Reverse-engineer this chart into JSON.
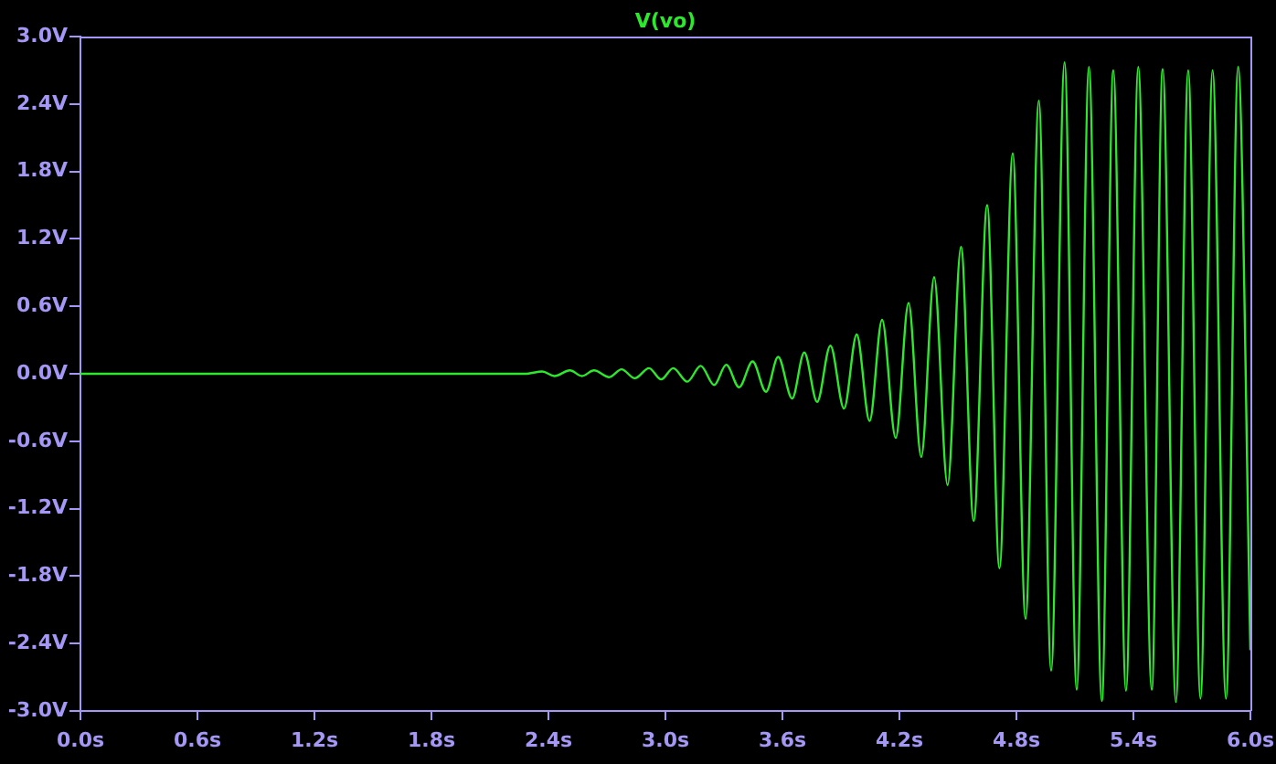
{
  "chart_data": {
    "type": "line",
    "legend": "top",
    "x": [
      0,
      2.28,
      2.369,
      2.431,
      2.51,
      2.572,
      2.634,
      2.712,
      2.775,
      2.843,
      2.916,
      2.978,
      3.04,
      3.112,
      3.181,
      3.25,
      3.312,
      3.378,
      3.447,
      3.516,
      3.578,
      3.65,
      3.712,
      3.778,
      3.846,
      3.916,
      3.981,
      4.047,
      4.111,
      4.181,
      4.247,
      4.312,
      4.378,
      4.447,
      4.516,
      4.581,
      4.65,
      4.713,
      4.781,
      4.847,
      4.915,
      4.978,
      5.047,
      5.109,
      5.172,
      5.238,
      5.297,
      5.362,
      5.425,
      5.494,
      5.55,
      5.618,
      5.681,
      5.744,
      5.806,
      5.875,
      5.937,
      6.0
    ],
    "series": [
      {
        "name": "V(vo)",
        "color": "#2ee82e",
        "values": [
          0,
          0,
          0.02,
          -0.02,
          0.03,
          -0.02,
          0.03,
          -0.03,
          0.04,
          -0.04,
          0.05,
          -0.05,
          0.05,
          -0.07,
          0.07,
          -0.1,
          0.08,
          -0.12,
          0.11,
          -0.16,
          0.15,
          -0.22,
          0.19,
          -0.25,
          0.25,
          -0.31,
          0.35,
          -0.42,
          0.48,
          -0.57,
          0.63,
          -0.74,
          0.86,
          -0.99,
          1.13,
          -1.31,
          1.5,
          -1.73,
          1.96,
          -2.18,
          2.43,
          -2.64,
          2.77,
          -2.81,
          2.73,
          -2.91,
          2.7,
          -2.82,
          2.73,
          -2.81,
          2.71,
          -2.92,
          2.7,
          -2.89,
          2.7,
          -2.89,
          2.73,
          -2.46
        ]
      }
    ],
    "xlim": [
      0,
      6
    ],
    "xticks": [
      {
        "value": 0,
        "label": "0.0s"
      },
      {
        "value": 0.6,
        "label": "0.6s"
      },
      {
        "value": 1.2,
        "label": "1.2s"
      },
      {
        "value": 1.8,
        "label": "1.8s"
      },
      {
        "value": 2.4,
        "label": "2.4s"
      },
      {
        "value": 3,
        "label": "3.0s"
      },
      {
        "value": 3.6,
        "label": "3.6s"
      },
      {
        "value": 4.2,
        "label": "4.2s"
      },
      {
        "value": 4.8,
        "label": "4.8s"
      },
      {
        "value": 5.4,
        "label": "5.4s"
      },
      {
        "value": 6,
        "label": "6.0s"
      }
    ],
    "ylim": [
      -3,
      3
    ],
    "yticks": [
      {
        "value": 3,
        "label": "3.0V"
      },
      {
        "value": 2.4,
        "label": "2.4V"
      },
      {
        "value": 1.8,
        "label": "1.8V"
      },
      {
        "value": 1.2,
        "label": "1.2V"
      },
      {
        "value": 0.6,
        "label": "0.6V"
      },
      {
        "value": 0,
        "label": "0.0V"
      },
      {
        "value": -0.6,
        "label": "-0.6V"
      },
      {
        "value": -1.2,
        "label": "-1.2V"
      },
      {
        "value": -1.8,
        "label": "-1.8V"
      },
      {
        "value": -2.4,
        "label": "-2.4V"
      },
      {
        "value": -3,
        "label": "-3.0V"
      }
    ]
  }
}
